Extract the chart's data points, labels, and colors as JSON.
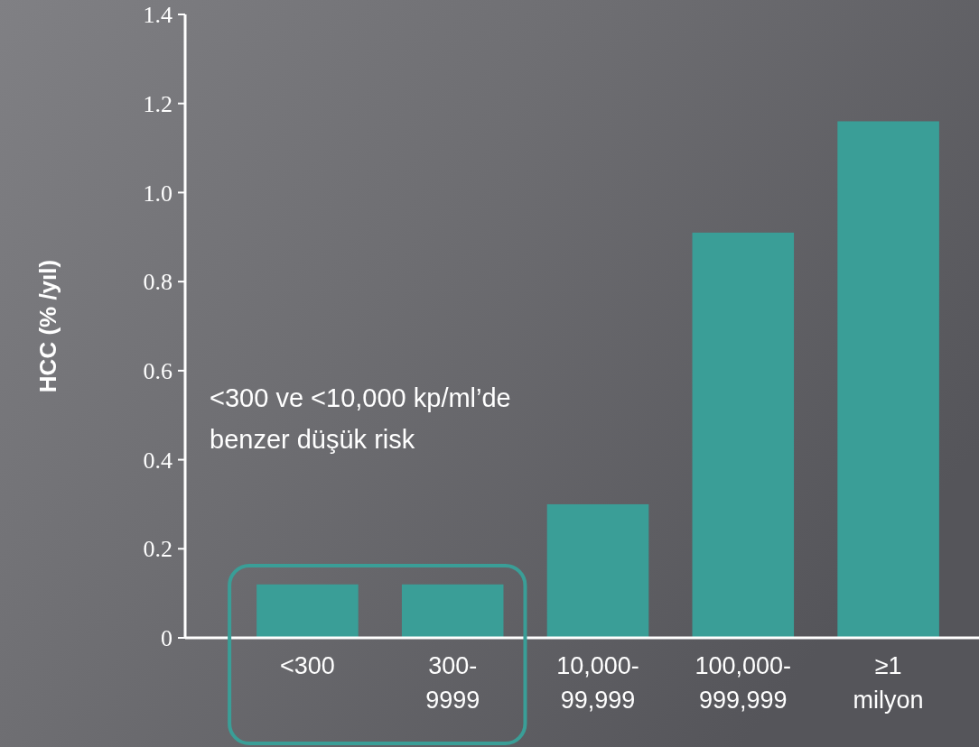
{
  "chart_data": {
    "type": "bar",
    "ylabel": "HCC  (% /yıl)",
    "categories": [
      "<300",
      "300-9999",
      "10,000-99,999",
      "100,000-999,999",
      "≥1 milyon"
    ],
    "values": [
      0.12,
      0.12,
      0.3,
      0.91,
      1.16
    ],
    "color": "#3a9e97",
    "ylim": [
      0,
      1.4
    ],
    "yticks": [
      0,
      0.2,
      0.4,
      0.6,
      0.8,
      {
        "value": 1,
        "label": "1.0"
      },
      1.2,
      1.4
    ],
    "annotations": [
      "<300 ve <10,000 kp/ml’de benzer düşük risk"
    ],
    "grid": false
  }
}
